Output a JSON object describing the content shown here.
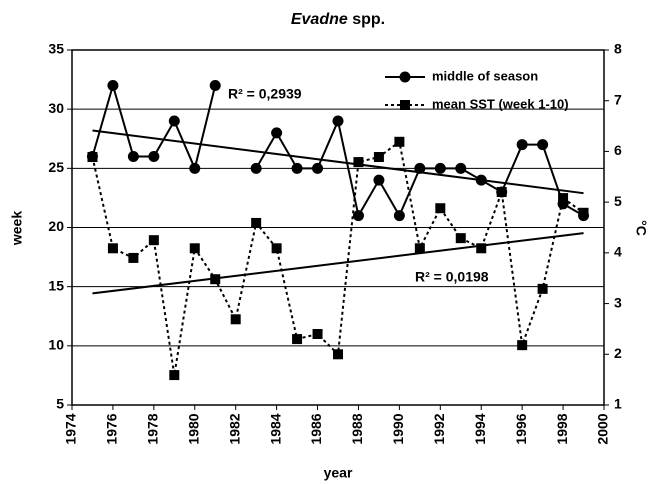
{
  "chart_data": {
    "type": "line",
    "title": {
      "italic": "Evadne",
      "rest": "spp."
    },
    "xlabel": "year",
    "ylabel": "week",
    "y2label": "°C",
    "x": [
      1975,
      1976,
      1977,
      1978,
      1979,
      1980,
      1981,
      1982,
      1983,
      1984,
      1985,
      1986,
      1987,
      1988,
      1989,
      1990,
      1991,
      1992,
      1993,
      1994,
      1995,
      1996,
      1997,
      1998,
      1999
    ],
    "series": [
      {
        "name": "middle of season",
        "color": "#000000",
        "axis": "y",
        "marker": "circle",
        "dash": false,
        "values": [
          26,
          32,
          26,
          26,
          29,
          25,
          32,
          null,
          25,
          28,
          25,
          25,
          29,
          21,
          24,
          21,
          25,
          25,
          25,
          24,
          23,
          27,
          27,
          22,
          21
        ]
      },
      {
        "name": "mean SST (week 1-10)",
        "color": "#000000",
        "axis": "y2",
        "marker": "square",
        "dash": true,
        "values": [
          5.89,
          4.09,
          3.9,
          4.25,
          1.59,
          4.09,
          3.48,
          2.69,
          4.59,
          4.09,
          2.3,
          2.4,
          2.0,
          5.79,
          5.89,
          6.19,
          4.09,
          4.88,
          4.29,
          4.09,
          5.2,
          2.18,
          3.29,
          5.08,
          4.79
        ]
      }
    ],
    "trendlines": [
      {
        "axis": "y",
        "x": [
          1975,
          1999
        ],
        "values": [
          28.2,
          22.9
        ],
        "label": "R² = 0,2939"
      },
      {
        "axis": "y2",
        "x": [
          1975,
          1999
        ],
        "values": [
          3.2,
          4.39
        ],
        "label": "R² = 0,0198"
      }
    ],
    "xlim": [
      1974,
      2000
    ],
    "xticks": [
      1974,
      1976,
      1978,
      1980,
      1982,
      1984,
      1986,
      1988,
      1990,
      1992,
      1994,
      1996,
      1998,
      2000
    ],
    "ylim": [
      5,
      35
    ],
    "yticks": [
      5,
      10,
      15,
      20,
      25,
      30,
      35
    ],
    "y2lim": [
      1,
      8
    ],
    "y2ticks": [
      1,
      2,
      3,
      4,
      5,
      6,
      7,
      8
    ],
    "grid": true,
    "legend": "top-right"
  }
}
